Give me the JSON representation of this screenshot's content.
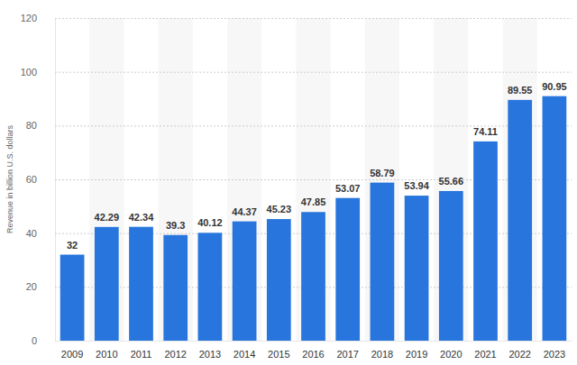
{
  "chart_data": {
    "type": "bar",
    "y_label": "Revenue in billion U.S. dollars",
    "categories": [
      "2009",
      "2010",
      "2011",
      "2012",
      "2013",
      "2014",
      "2015",
      "2016",
      "2017",
      "2018",
      "2019",
      "2020",
      "2021",
      "2022",
      "2023"
    ],
    "values": [
      32,
      42.29,
      42.34,
      39.3,
      40.12,
      44.37,
      45.23,
      47.85,
      53.07,
      58.79,
      53.94,
      55.66,
      74.11,
      89.55,
      90.95
    ],
    "color": "#2876dd",
    "ylim": [
      0,
      120
    ],
    "yticks": [
      0,
      20,
      40,
      60,
      80,
      100,
      120
    ],
    "grid": true,
    "data_labels": true
  }
}
